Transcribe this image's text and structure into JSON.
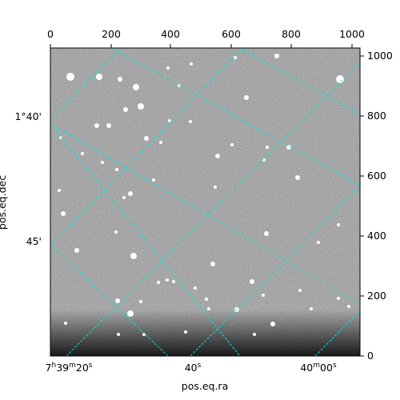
{
  "axes": {
    "top_ticks": [
      "0",
      "200",
      "400",
      "600",
      "800",
      "1000"
    ],
    "right_ticks": [
      "0",
      "200",
      "400",
      "600",
      "800",
      "1000"
    ],
    "left_ticks": [
      "1°40'",
      "45'"
    ],
    "bottom_ticks": [
      "7h39m20s",
      "40s",
      "40m00s"
    ],
    "bottom_ticks_parts": [
      {
        "a": "7",
        "b": "h",
        "c": "39",
        "d": "m",
        "e": "20",
        "f": "s"
      },
      {
        "a": "40",
        "f": "s"
      },
      {
        "a": "40",
        "b": "m",
        "c": "00",
        "f": "s"
      }
    ],
    "xlabel": "pos.eq.ra",
    "ylabel": "pos.eq.dec"
  },
  "colors": {
    "grid": "#00e5e5",
    "sky": "#6b6b6b",
    "frame": "#000000"
  }
}
